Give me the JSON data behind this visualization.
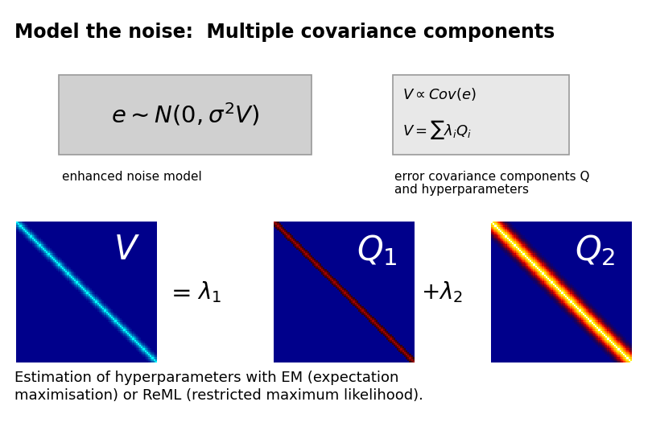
{
  "title": "Model the noise:  Multiple covariance components",
  "title_fontsize": 17,
  "title_fontweight": "bold",
  "bg_color": "#ffffff",
  "formula_box1_text": "$e \\sim N(0, \\sigma^2 V)$",
  "formula_box1_facecolor": "#d0d0d0",
  "label1": "enhanced noise model",
  "formula_box2_line1": "$V \\propto Cov(e)$",
  "formula_box2_line2": "$V = \\sum \\lambda_i Q_i$",
  "label2_line1": "error covariance components Q",
  "label2_line2": "and hyperparameters",
  "V_label": "$V$",
  "Q1_label": "$Q_1$",
  "Q2_label": "$Q_2$",
  "bottom_text_line1": "Estimation of hyperparameters with EM (expectation",
  "bottom_text_line2": "maximisation) or ReML (restricted maximum likelihood).",
  "matrix_size": 80,
  "fig_w": 8.1,
  "fig_h": 5.4,
  "dpi": 100
}
